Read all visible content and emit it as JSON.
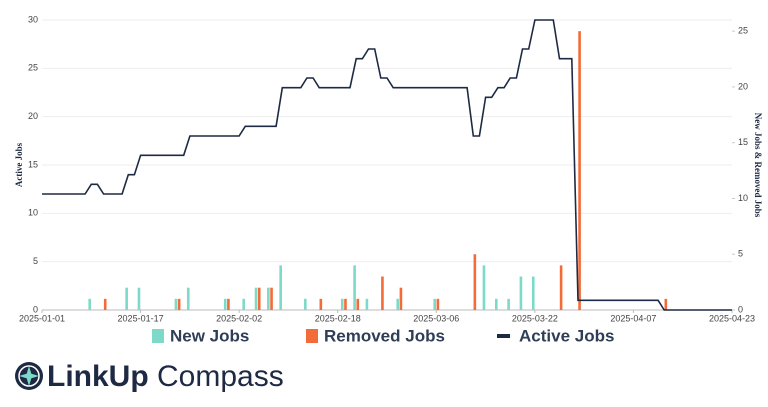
{
  "chart_data": {
    "type": "bar-line",
    "brand": [
      "LinkUp",
      "Compass"
    ],
    "y_label": "Active Jobs",
    "y2_label": "New Jobs & Removed Jobs",
    "xlim": [
      "2025-01-01",
      "2025-04-23"
    ],
    "xticks": [
      "2025-01-01",
      "2025-01-17",
      "2025-02-02",
      "2025-02-18",
      "2025-03-06",
      "2025-03-22",
      "2025-04-07",
      "2025-04-23"
    ],
    "ylim": [
      0,
      30
    ],
    "yticks": [
      0,
      5,
      10,
      15,
      20,
      25,
      30
    ],
    "y2lim": [
      0,
      26
    ],
    "y2ticks": [
      0,
      5,
      10,
      15,
      20,
      25
    ],
    "grid": true,
    "series": [
      {
        "name": "New Jobs",
        "type": "bar",
        "axis": "y2",
        "color": "#7dd9c8",
        "x": [
          "2025-01-09",
          "2025-01-15",
          "2025-01-17",
          "2025-01-23",
          "2025-01-25",
          "2025-01-31",
          "2025-02-03",
          "2025-02-05",
          "2025-02-07",
          "2025-02-09",
          "2025-02-13",
          "2025-02-19",
          "2025-02-21",
          "2025-02-23",
          "2025-02-28",
          "2025-03-06",
          "2025-03-14",
          "2025-03-16",
          "2025-03-18",
          "2025-03-20",
          "2025-03-22"
        ],
        "values": [
          1,
          2,
          2,
          1,
          2,
          1,
          1,
          2,
          2,
          4,
          1,
          1,
          4,
          1,
          1,
          1,
          4,
          1,
          1,
          3,
          3
        ]
      },
      {
        "name": "Removed Jobs",
        "type": "bar",
        "axis": "y2",
        "color": "#f26b38",
        "x": [
          "2025-01-11",
          "2025-01-23",
          "2025-01-31",
          "2025-02-05",
          "2025-02-07",
          "2025-02-15",
          "2025-02-19",
          "2025-02-21",
          "2025-02-25",
          "2025-02-28",
          "2025-03-06",
          "2025-03-12",
          "2025-03-26",
          "2025-03-29",
          "2025-04-12"
        ],
        "values": [
          1,
          1,
          1,
          2,
          2,
          1,
          1,
          1,
          3,
          2,
          1,
          5,
          4,
          25,
          1
        ]
      },
      {
        "name": "Active Jobs",
        "type": "line",
        "color": "#1e2a44",
        "x": [
          "2025-01-01",
          "2025-01-08",
          "2025-01-09",
          "2025-01-10",
          "2025-01-11",
          "2025-01-14",
          "2025-01-15",
          "2025-01-16",
          "2025-01-17",
          "2025-01-24",
          "2025-01-25",
          "2025-02-02",
          "2025-02-03",
          "2025-02-08",
          "2025-02-09",
          "2025-02-12",
          "2025-02-13",
          "2025-02-14",
          "2025-02-15",
          "2025-02-20",
          "2025-02-21",
          "2025-02-22",
          "2025-02-23",
          "2025-02-24",
          "2025-02-25",
          "2025-02-26",
          "2025-02-27",
          "2025-03-11",
          "2025-03-12",
          "2025-03-13",
          "2025-03-14",
          "2025-03-15",
          "2025-03-16",
          "2025-03-17",
          "2025-03-18",
          "2025-03-19",
          "2025-03-20",
          "2025-03-21",
          "2025-03-22",
          "2025-03-25",
          "2025-03-26",
          "2025-03-28",
          "2025-03-29",
          "2025-04-11",
          "2025-04-12",
          "2025-04-23"
        ],
        "values": [
          12,
          12,
          13,
          13,
          12,
          12,
          14,
          14,
          16,
          16,
          18,
          18,
          19,
          19,
          23,
          23,
          24,
          24,
          23,
          23,
          26,
          26,
          27,
          27,
          24,
          24,
          23,
          23,
          18,
          18,
          22,
          22,
          23,
          23,
          24,
          24,
          27,
          27,
          30,
          30,
          26,
          26,
          1,
          1,
          0,
          0
        ]
      }
    ]
  }
}
